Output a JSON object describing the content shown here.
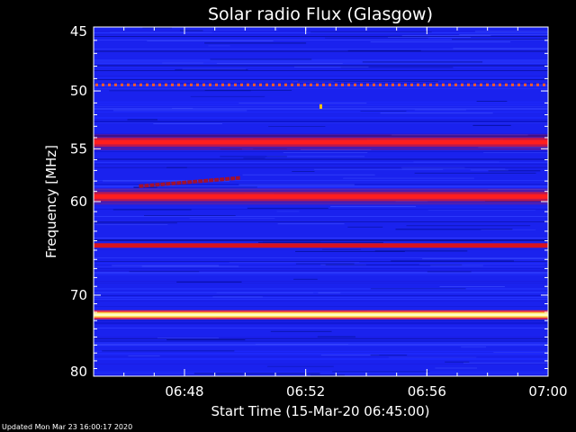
{
  "chart_data": {
    "type": "heatmap",
    "title": "Solar radio Flux (Glasgow)",
    "xlabel": "Start Time (15-Mar-20 06:45:00)",
    "ylabel": "Frequency [MHz]",
    "xlim": [
      "06:45",
      "07:00"
    ],
    "ylim": [
      45,
      80
    ],
    "y_scale": "log",
    "x_ticks": [
      "06:48",
      "06:52",
      "06:56",
      "07:00"
    ],
    "y_ticks": [
      45,
      50,
      55,
      60,
      70,
      80
    ],
    "colormap": "blue-red-yellow-white",
    "background_color": "#1a22ee",
    "emission_lines": [
      {
        "frequency": 49.5,
        "level": "high",
        "style": "dashed",
        "color": "#ff5a2a"
      },
      {
        "frequency": 54.4,
        "level": "high",
        "style": "solid",
        "color": "#ff1e1e"
      },
      {
        "frequency": 59.5,
        "level": "high",
        "style": "solid",
        "color": "#ff1e1e"
      },
      {
        "frequency": 64.5,
        "level": "medium",
        "style": "solid",
        "color": "#d8141e"
      },
      {
        "frequency": 72.3,
        "level": "saturated",
        "style": "solid",
        "color": "#ffffc0"
      }
    ],
    "features": [
      {
        "kind": "drift",
        "start_time": "06:46:30",
        "end_time": "06:49:50",
        "start_frequency": 58.5,
        "end_frequency": 57.7,
        "color": "#a01030"
      },
      {
        "kind": "spike",
        "time": "06:52:30",
        "frequency": 51.3,
        "color": "#ffc000"
      }
    ]
  },
  "footer": {
    "updated": "Updated Mon Mar 23 16:00:17 2020"
  }
}
